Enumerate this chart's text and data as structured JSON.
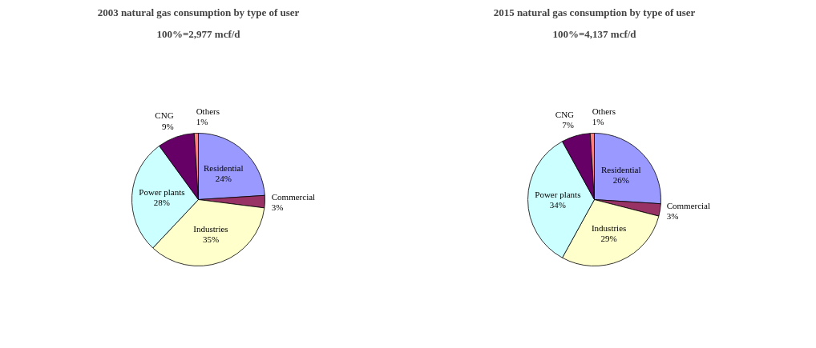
{
  "chart_data": [
    {
      "type": "pie",
      "title": "2003 natural gas consumption by type of user",
      "subtitle": "100%=2,977 mcf/d",
      "categories": [
        "Residential",
        "Commercial",
        "Industries",
        "Power plants",
        "CNG",
        "Others"
      ],
      "values": [
        24,
        3,
        35,
        28,
        9,
        1
      ],
      "value_labels": [
        "24%",
        "3%",
        "35%",
        "28%",
        "9%",
        "1%"
      ],
      "colors": [
        "#9999ff",
        "#993366",
        "#ffffcc",
        "#ccffff",
        "#660066",
        "#ff8080"
      ]
    },
    {
      "type": "pie",
      "title": "2015 natural gas consumption by type of user",
      "subtitle": "100%=4,137 mcf/d",
      "categories": [
        "Residential",
        "Commercial",
        "Industries",
        "Power plants",
        "CNG",
        "Others"
      ],
      "values": [
        26,
        3,
        29,
        34,
        7,
        1
      ],
      "value_labels": [
        "26%",
        "3%",
        "29%",
        "34%",
        "7%",
        "1%"
      ],
      "colors": [
        "#9999ff",
        "#993366",
        "#ffffcc",
        "#ccffff",
        "#660066",
        "#ff8080"
      ]
    }
  ]
}
